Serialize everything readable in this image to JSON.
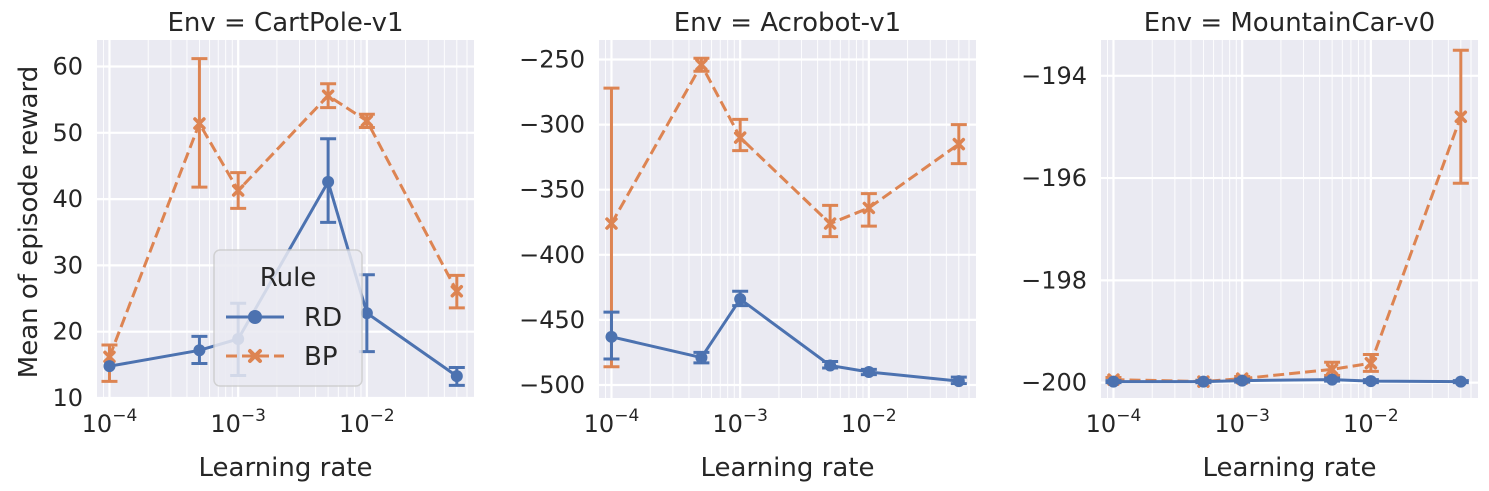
{
  "colors": {
    "RD": "#4c72b0",
    "BP": "#dd8452"
  },
  "xlabel": "Learning rate",
  "ylabel": "Mean of episode reward",
  "x_tick_labels": [
    "10^-4",
    "10^-3",
    "10^-2"
  ],
  "legend": {
    "title": "Rule",
    "entries": [
      "RD",
      "BP"
    ],
    "placement": "lower-center of first panel"
  },
  "chart_data": [
    {
      "type": "line",
      "title": "Env = CartPole-v1",
      "x_scale": "log",
      "x": [
        0.0001,
        0.0005,
        0.001,
        0.005,
        0.01,
        0.05
      ],
      "ylim": [
        10,
        64
      ],
      "yticks": [
        10,
        20,
        30,
        40,
        50,
        60
      ],
      "grid": true,
      "series": [
        {
          "name": "RD",
          "marker": "circle",
          "linestyle": "solid",
          "values": [
            14.8,
            17.2,
            18.9,
            42.6,
            22.8,
            13.3
          ],
          "err_low": [
            14.8,
            15.2,
            13.4,
            36.5,
            17.0,
            11.9
          ],
          "err_high": [
            14.8,
            19.3,
            24.3,
            49.1,
            28.6,
            14.6
          ]
        },
        {
          "name": "BP",
          "marker": "x",
          "linestyle": "dashed",
          "values": [
            16.2,
            51.4,
            41.3,
            55.6,
            51.8,
            26.1
          ],
          "err_low": [
            12.5,
            41.8,
            38.6,
            53.8,
            50.8,
            23.6
          ],
          "err_high": [
            18.0,
            61.2,
            44.0,
            57.4,
            52.8,
            28.5
          ]
        }
      ]
    },
    {
      "type": "line",
      "title": "Env = Acrobot-v1",
      "x_scale": "log",
      "x": [
        0.0001,
        0.0005,
        0.001,
        0.005,
        0.01,
        0.05
      ],
      "ylim": [
        -510,
        -235
      ],
      "yticks": [
        -500,
        -450,
        -400,
        -350,
        -300,
        -250
      ],
      "grid": true,
      "series": [
        {
          "name": "RD",
          "marker": "circle",
          "linestyle": "solid",
          "values": [
            -463,
            -479,
            -434,
            -485,
            -490,
            -497
          ],
          "err_low": [
            -480,
            -483,
            -439,
            -487,
            -492,
            -499
          ],
          "err_high": [
            -444,
            -475,
            -428,
            -482,
            -488,
            -494
          ]
        },
        {
          "name": "BP",
          "marker": "x",
          "linestyle": "dashed",
          "values": [
            -376,
            -254,
            -310,
            -376,
            -364,
            -315
          ],
          "err_low": [
            -486,
            -259,
            -320,
            -386,
            -378,
            -330
          ],
          "err_high": [
            -272,
            -249,
            -296,
            -362,
            -353,
            -300
          ]
        }
      ]
    },
    {
      "type": "line",
      "title": "Env = MountainCar-v0",
      "x_scale": "log",
      "x": [
        0.0001,
        0.0005,
        0.001,
        0.005,
        0.01,
        0.05
      ],
      "ylim": [
        -200.3,
        -193.3
      ],
      "yticks": [
        -200,
        -198,
        -196,
        -194
      ],
      "grid": true,
      "series": [
        {
          "name": "RD",
          "marker": "circle",
          "linestyle": "solid",
          "values": [
            -199.98,
            -199.98,
            -199.96,
            -199.94,
            -199.97,
            -199.98
          ],
          "err_low": [
            -200.0,
            -200.0,
            -199.99,
            -199.97,
            -200.0,
            -200.0
          ],
          "err_high": [
            -199.96,
            -199.96,
            -199.93,
            -199.91,
            -199.94,
            -199.96
          ]
        },
        {
          "name": "BP",
          "marker": "x",
          "linestyle": "dashed",
          "values": [
            -199.94,
            -199.98,
            -199.92,
            -199.74,
            -199.62,
            -194.8
          ],
          "err_low": [
            -199.98,
            -200.0,
            -199.96,
            -199.86,
            -199.78,
            -196.1
          ],
          "err_high": [
            -199.9,
            -199.95,
            -199.88,
            -199.6,
            -199.45,
            -193.5
          ]
        }
      ]
    }
  ]
}
